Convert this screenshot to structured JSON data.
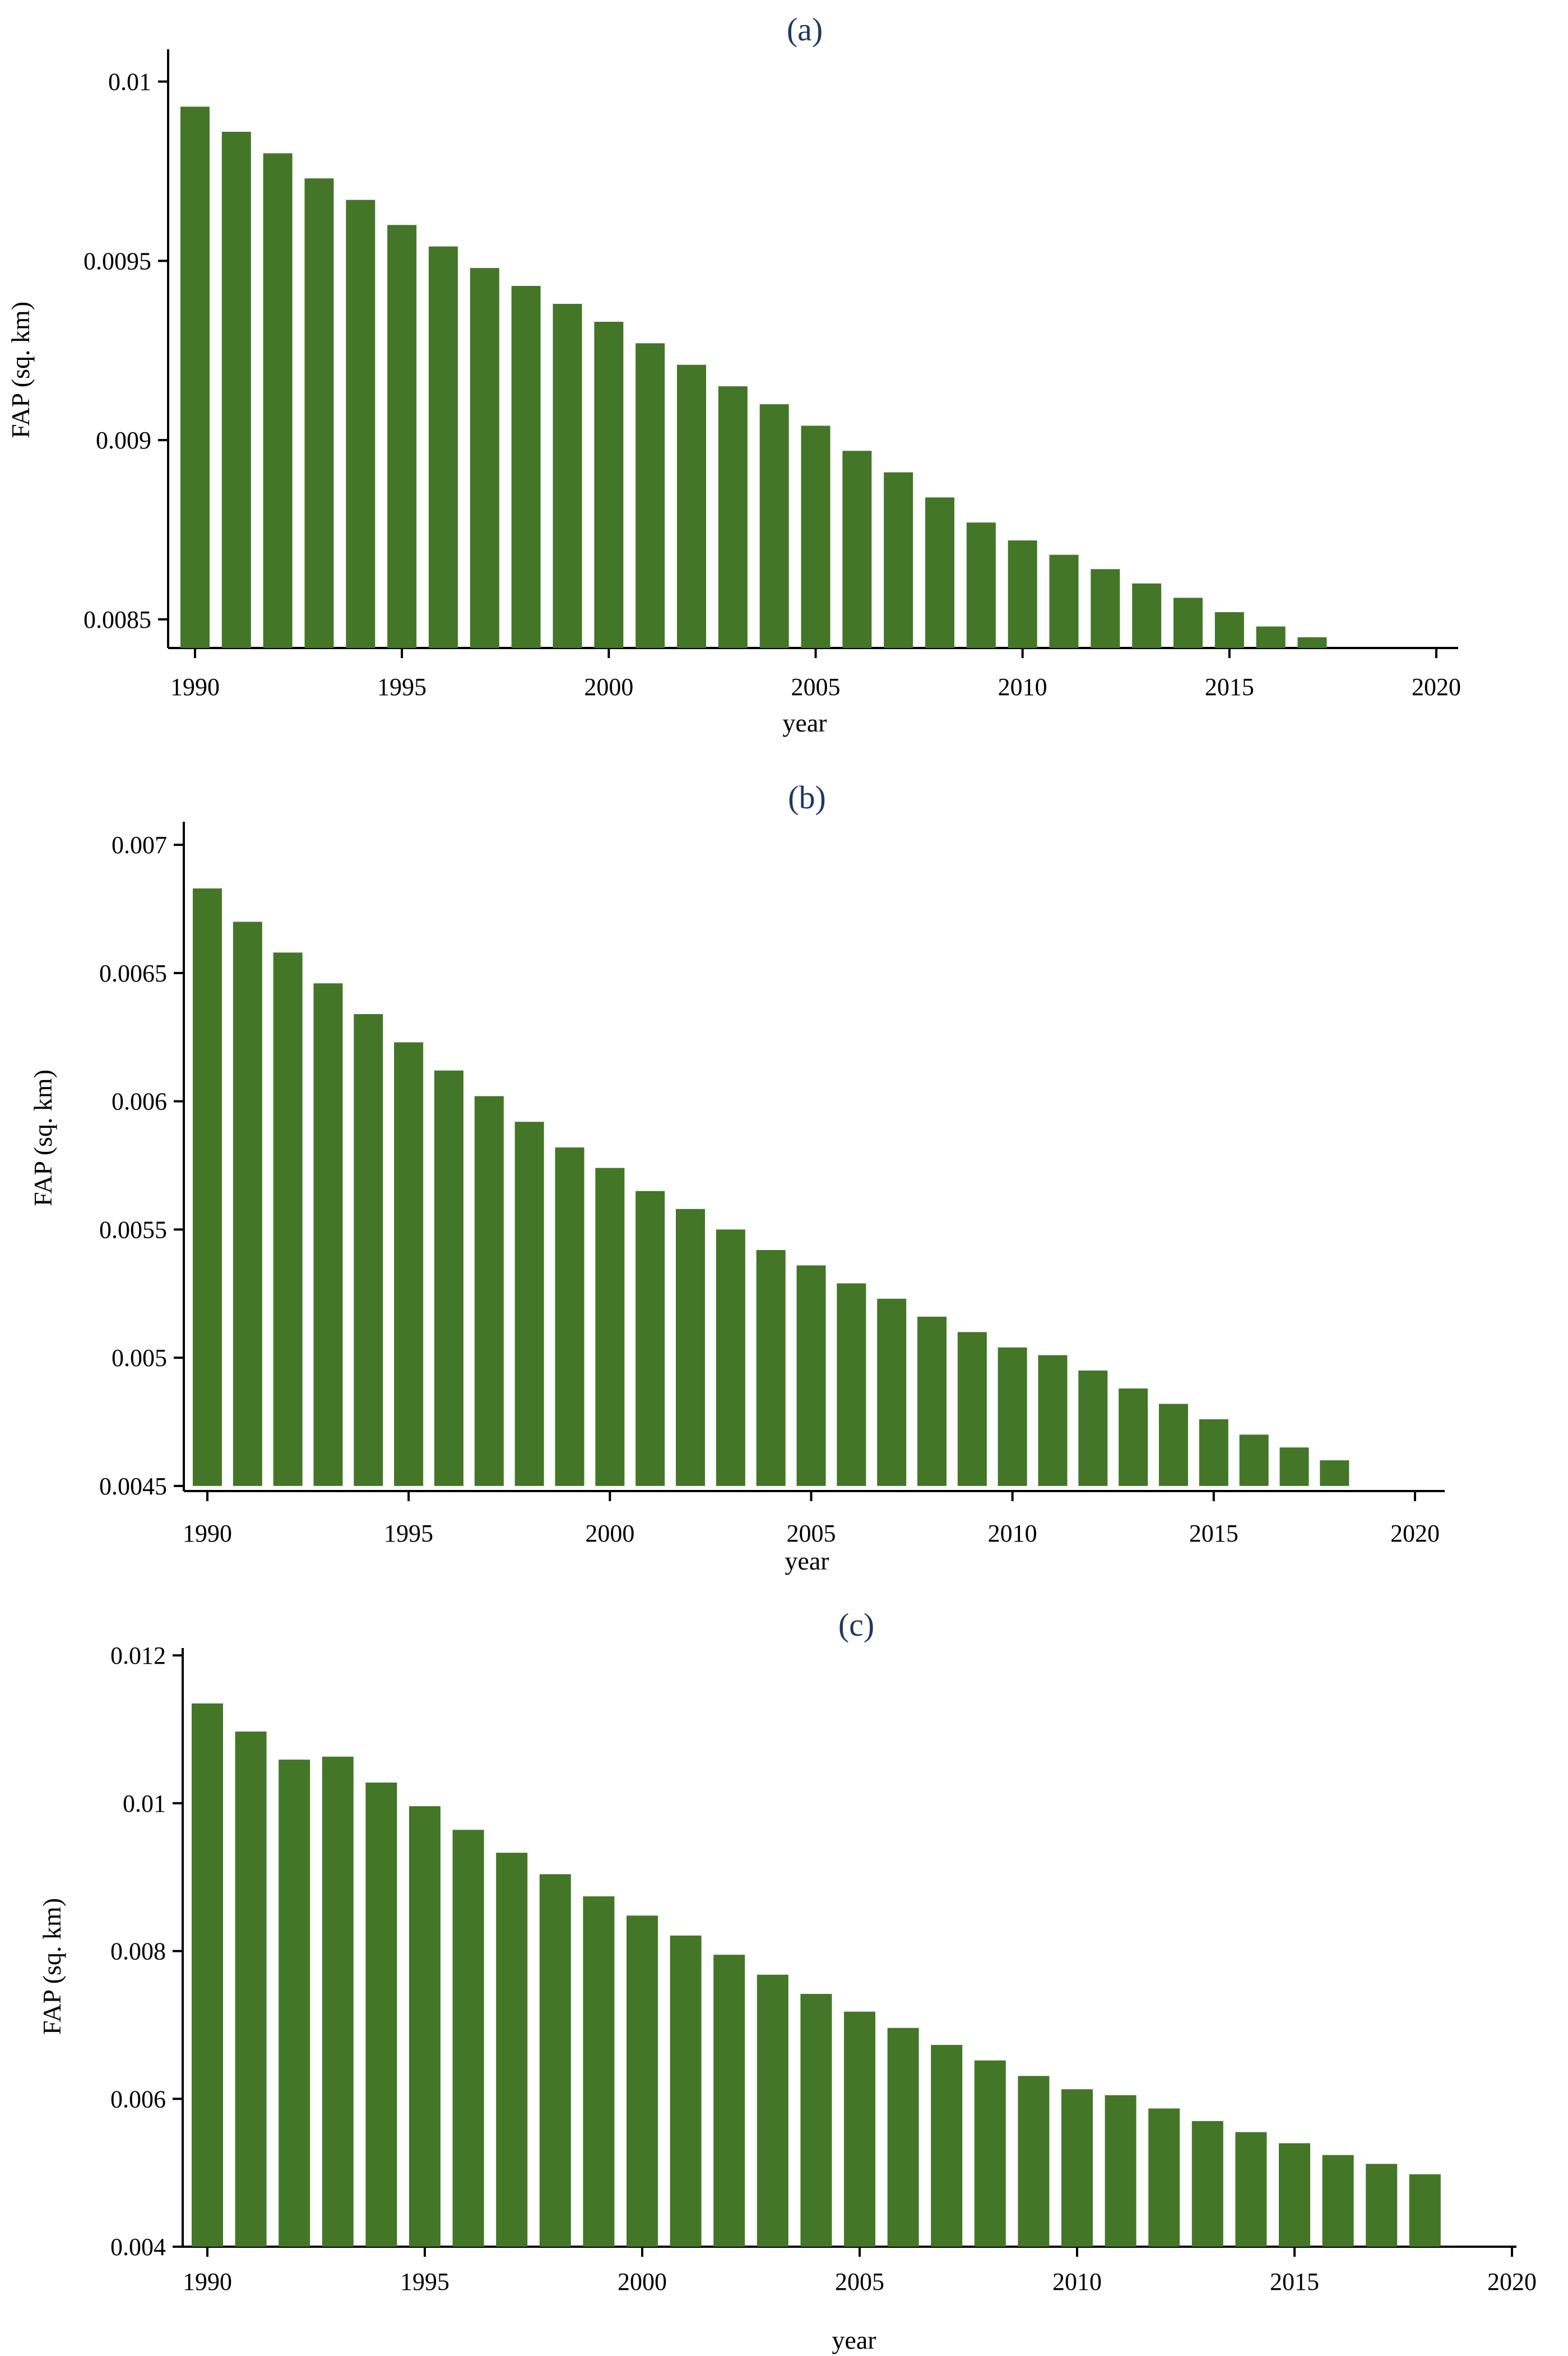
{
  "chart_data": [
    {
      "type": "bar",
      "title": "(a)",
      "xlabel": "year",
      "ylabel": "FAP (sq. km)",
      "xlim": [
        1990,
        2020
      ],
      "ylim": [
        0.00842,
        0.01009
      ],
      "base": 0.00842,
      "xticks": [
        1990,
        1995,
        2000,
        2005,
        2010,
        2015,
        2020
      ],
      "yticks": [
        0.0085,
        0.009,
        0.0095,
        0.01
      ],
      "ytick_labels": [
        "0.0085",
        "0.009",
        "0.0095",
        "0.01"
      ],
      "categories": [
        1990,
        1991,
        1992,
        1993,
        1994,
        1995,
        1996,
        1997,
        1998,
        1999,
        2000,
        2001,
        2002,
        2003,
        2004,
        2005,
        2006,
        2007,
        2008,
        2009,
        2010,
        2011,
        2012,
        2013,
        2014,
        2015,
        2016,
        2017
      ],
      "values": [
        0.00993,
        0.00986,
        0.0098,
        0.00973,
        0.00967,
        0.0096,
        0.00954,
        0.00948,
        0.00943,
        0.00938,
        0.00933,
        0.00927,
        0.00921,
        0.00915,
        0.0091,
        0.00904,
        0.00897,
        0.00891,
        0.00884,
        0.00877,
        0.00872,
        0.00868,
        0.00864,
        0.0086,
        0.00856,
        0.00852,
        0.00848,
        0.00845
      ]
    },
    {
      "type": "bar",
      "title": "(b)",
      "xlabel": "year",
      "ylabel": "FAP (sq. km)",
      "xlim": [
        1990,
        2020
      ],
      "ylim": [
        0.00448,
        0.00709
      ],
      "base": 0.0045,
      "xticks": [
        1990,
        1995,
        2000,
        2005,
        2010,
        2015,
        2020
      ],
      "yticks": [
        0.0045,
        0.005,
        0.0055,
        0.006,
        0.0065,
        0.007
      ],
      "ytick_labels": [
        "0.0045",
        "0.005",
        "0.0055",
        "0.006",
        "0.0065",
        "0.007"
      ],
      "categories": [
        1990,
        1991,
        1992,
        1993,
        1994,
        1995,
        1996,
        1997,
        1998,
        1999,
        2000,
        2001,
        2002,
        2003,
        2004,
        2005,
        2006,
        2007,
        2008,
        2009,
        2010,
        2011,
        2012,
        2013,
        2014,
        2015,
        2016,
        2017,
        2018
      ],
      "values": [
        0.00683,
        0.0067,
        0.00658,
        0.00646,
        0.00634,
        0.00623,
        0.00612,
        0.00602,
        0.00592,
        0.00582,
        0.00574,
        0.00565,
        0.00558,
        0.0055,
        0.00542,
        0.00536,
        0.00529,
        0.00523,
        0.00516,
        0.0051,
        0.00504,
        0.00501,
        0.00495,
        0.00488,
        0.00482,
        0.00476,
        0.0047,
        0.00465,
        0.0046
      ]
    },
    {
      "type": "bar",
      "title": "(c)",
      "xlabel": "year",
      "ylabel": "FAP (sq. km)",
      "xlim": [
        1990,
        2020
      ],
      "ylim": [
        0.004,
        0.0121
      ],
      "base": 0.004,
      "xticks": [
        1990,
        1995,
        2000,
        2005,
        2010,
        2015,
        2020
      ],
      "yticks": [
        0.004,
        0.006,
        0.008,
        0.01,
        0.012
      ],
      "ytick_labels": [
        "0.004",
        "0.006",
        "0.008",
        "0.01",
        "0.012"
      ],
      "categories": [
        1990,
        1991,
        1992,
        1993,
        1994,
        1995,
        1996,
        1997,
        1998,
        1999,
        2000,
        2001,
        2002,
        2003,
        2004,
        2005,
        2006,
        2007,
        2008,
        2009,
        2010,
        2011,
        2012,
        2013,
        2014,
        2015,
        2016,
        2017,
        2018
      ],
      "values": [
        0.01135,
        0.01097,
        0.01059,
        0.01063,
        0.01028,
        0.00996,
        0.00964,
        0.00933,
        0.00904,
        0.00874,
        0.00848,
        0.00821,
        0.00795,
        0.00768,
        0.00742,
        0.00718,
        0.00696,
        0.00673,
        0.00652,
        0.00631,
        0.00613,
        0.00605,
        0.00587,
        0.0057,
        0.00555,
        0.0054,
        0.00524,
        0.00512,
        0.00498
      ]
    }
  ]
}
